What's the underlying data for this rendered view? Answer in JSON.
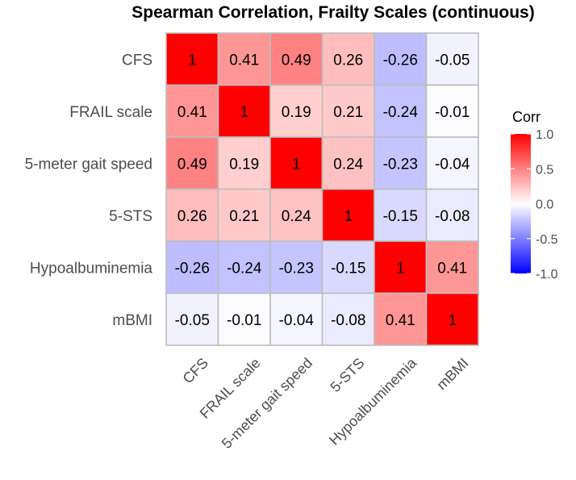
{
  "chart_data": {
    "type": "heatmap",
    "title": "Spearman Correlation, Frailty Scales (continuous)",
    "xlabel": "",
    "ylabel": "",
    "categories": [
      "CFS",
      "FRAIL scale",
      "5-meter gait speed",
      "5-STS",
      "Hypoalbuminemia",
      "mBMI"
    ],
    "matrix": [
      [
        1,
        0.41,
        0.49,
        0.26,
        -0.26,
        -0.05
      ],
      [
        0.41,
        1,
        0.19,
        0.21,
        -0.24,
        -0.01
      ],
      [
        0.49,
        0.19,
        1,
        0.24,
        -0.23,
        -0.04
      ],
      [
        0.26,
        0.21,
        0.24,
        1,
        -0.15,
        -0.08
      ],
      [
        -0.26,
        -0.24,
        -0.23,
        -0.15,
        1,
        0.41
      ],
      [
        -0.05,
        -0.01,
        -0.04,
        -0.08,
        0.41,
        1
      ]
    ],
    "cell_labels": [
      [
        "1",
        "0.41",
        "0.49",
        "0.26",
        "-0.26",
        "-0.05"
      ],
      [
        "0.41",
        "1",
        "0.19",
        "0.21",
        "-0.24",
        "-0.01"
      ],
      [
        "0.49",
        "0.19",
        "1",
        "0.24",
        "-0.23",
        "-0.04"
      ],
      [
        "0.26",
        "0.21",
        "0.24",
        "1",
        "-0.15",
        "-0.08"
      ],
      [
        "-0.26",
        "-0.24",
        "-0.23",
        "-0.15",
        "1",
        "0.41"
      ],
      [
        "-0.05",
        "-0.01",
        "-0.04",
        "-0.08",
        "0.41",
        "1"
      ]
    ],
    "legend": {
      "title": "Corr",
      "range": [
        -1,
        1
      ],
      "ticks": [
        1,
        0.5,
        0,
        -0.5,
        -1
      ],
      "tick_labels": [
        "1.0",
        "0.5",
        "0.0",
        "-0.5",
        "-1.0"
      ],
      "placement": "right"
    },
    "colors": {
      "low": "#0000ff",
      "mid": "#ffffff",
      "high": "#ff0000",
      "grid": "#bdbdbd"
    }
  }
}
